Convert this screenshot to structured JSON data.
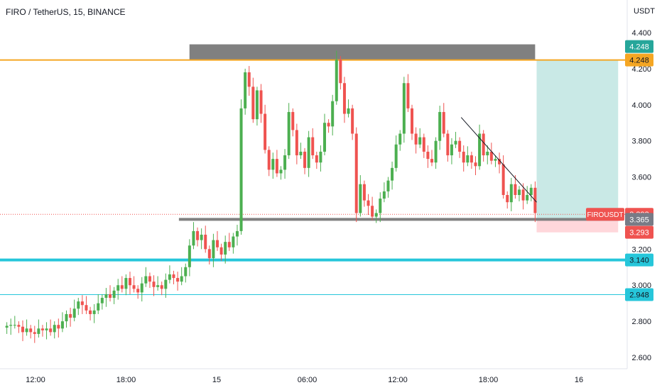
{
  "header": {
    "symbol_title": "FIRO / TetherUS, 15, BINANCE",
    "price_axis_unit": "USDT"
  },
  "colors": {
    "up": "#26a69a",
    "up_body": "#4caf50",
    "down": "#ef5350",
    "resistance_line": "#f5a623",
    "support_line": "#26c6da",
    "grey_level": "#808080",
    "target_zone": "#b2dfdb",
    "stop_zone": "#ffcdd2"
  },
  "chart_data": {
    "type": "candlestick",
    "y_axis": {
      "ylim": [
        2.56,
        4.44
      ],
      "ticks": [
        "4.400",
        "4.200",
        "4.000",
        "3.800",
        "3.600",
        "3.200",
        "3.000",
        "2.800",
        "2.600"
      ],
      "tick_values": [
        4.4,
        4.2,
        4.0,
        3.8,
        3.6,
        3.2,
        3.0,
        2.8,
        2.6
      ]
    },
    "x_axis": {
      "ticks": [
        "12:00",
        "18:00",
        "15",
        "06:00",
        "12:00",
        "18:00",
        "16"
      ],
      "tick_positions_hours": [
        12,
        18,
        24,
        30,
        36,
        42,
        48
      ],
      "start_hour": 10.1,
      "end_hour": 50.7
    },
    "levels": {
      "resistance": 4.248,
      "support": 3.14,
      "support_2": 2.948,
      "neckline": 3.365,
      "last_price": 3.393,
      "stop": 3.293
    },
    "price_labels": {
      "resistance_top": "4.248",
      "resistance": "4.248",
      "symbol": "FIROUSDT",
      "last_price": "3.393",
      "neckline": "3.365",
      "stop": "3.293",
      "support": "3.140",
      "support_2": "2.948"
    },
    "trendline": {
      "from": [
        40.2,
        3.93
      ],
      "to": [
        45.2,
        3.46
      ]
    },
    "target_zone": {
      "from_hour": 45.2,
      "to_hour": 50.6,
      "top": 4.248,
      "bottom": 3.365
    },
    "stop_zone": {
      "from_hour": 45.2,
      "to_hour": 50.6,
      "top": 3.365,
      "bottom": 3.293
    },
    "resistance_box": {
      "from_hour": 22.2,
      "to_hour": 45.1,
      "top": 4.335,
      "bottom": 4.248
    },
    "neckline_span": {
      "from_hour": 21.5,
      "to_hour": 50.7
    },
    "series_close": [
      2.775,
      2.78,
      2.78,
      2.77,
      2.74,
      2.76,
      2.74,
      2.73,
      2.76,
      2.75,
      2.76,
      2.74,
      2.78,
      2.76,
      2.8,
      2.84,
      2.82,
      2.87,
      2.91,
      2.89,
      2.86,
      2.84,
      2.86,
      2.9,
      2.93,
      2.95,
      2.93,
      2.97,
      3.0,
      2.98,
      3.04,
      3.0,
      2.98,
      2.96,
      3.01,
      3.05,
      3.02,
      2.99,
      3.0,
      2.98,
      3.03,
      3.06,
      3.04,
      3.02,
      3.05,
      3.1,
      3.22,
      3.3,
      3.25,
      3.28,
      3.2,
      3.15,
      3.25,
      3.21,
      3.17,
      3.24,
      3.21,
      3.27,
      3.3,
      3.98,
      4.18,
      4.1,
      3.92,
      4.08,
      3.95,
      3.75,
      3.64,
      3.7,
      3.62,
      3.64,
      3.72,
      3.96,
      3.86,
      3.72,
      3.74,
      3.65,
      3.82,
      3.72,
      3.68,
      3.74,
      3.9,
      3.88,
      4.02,
      4.25,
      4.12,
      3.95,
      3.98,
      3.84,
      3.4,
      3.56,
      3.47,
      3.44,
      3.38,
      3.4,
      3.48,
      3.52,
      3.58,
      3.65,
      3.78,
      3.84,
      4.12,
      3.98,
      3.84,
      3.78,
      3.82,
      3.74,
      3.7,
      3.68,
      3.8,
      3.96,
      3.84,
      3.72,
      3.78,
      3.8,
      3.74,
      3.68,
      3.72,
      3.68,
      3.66,
      3.84,
      3.72,
      3.74,
      3.69,
      3.7,
      3.67,
      3.5,
      3.46,
      3.56,
      3.5,
      3.53,
      3.47,
      3.5,
      3.54,
      3.4
    ]
  }
}
